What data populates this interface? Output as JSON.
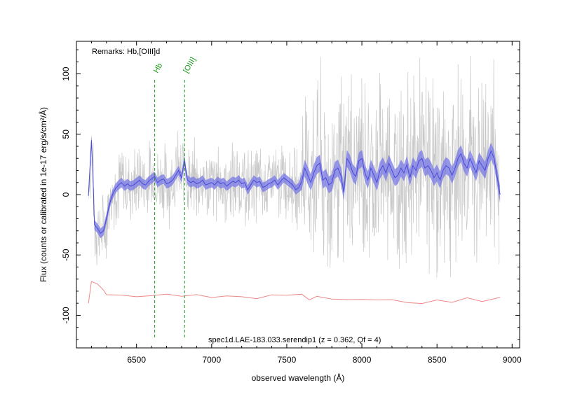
{
  "chart_data": {
    "type": "line",
    "title": "",
    "xlabel": "observed wavelength (Å)",
    "ylabel": "Flux (counts or calibrated in 1e-17 erg/s/cm²/Å)",
    "xlim": [
      6100,
      9050
    ],
    "ylim": [
      -127,
      127
    ],
    "x_ticks": [
      6500,
      7000,
      7500,
      8000,
      8500,
      9000
    ],
    "y_ticks": [
      -100,
      -50,
      0,
      50,
      100
    ],
    "grid": false,
    "remarks": "Remarks: Hb,[OIII]d",
    "object_label": "spec1d.LAE-183.033.serendip1 (z = 0.362, Qf = 4)",
    "line_markers": [
      {
        "name": "Hb",
        "x": 6621
      },
      {
        "name": "[OIII]",
        "x": 6820
      }
    ],
    "colors": {
      "raw": "#c8c8c8",
      "smoothed": "#4a4ad8",
      "smoothed_band": "#7878e6",
      "error": "#ee8888",
      "markers": "#1a9a1a"
    },
    "series": [
      {
        "name": "",
        "role": "smoothed",
        "x": [
          6180,
          6200,
          6210,
          6220,
          6240,
          6260,
          6280,
          6300,
          6320,
          6340,
          6360,
          6380,
          6400,
          6420,
          6440,
          6460,
          6480,
          6500,
          6520,
          6540,
          6560,
          6580,
          6600,
          6620,
          6640,
          6660,
          6680,
          6700,
          6720,
          6740,
          6760,
          6780,
          6800,
          6810,
          6820,
          6830,
          6840,
          6860,
          6880,
          6900,
          6920,
          6940,
          6960,
          6980,
          7000,
          7020,
          7040,
          7060,
          7080,
          7100,
          7120,
          7140,
          7160,
          7180,
          7200,
          7220,
          7240,
          7260,
          7280,
          7300,
          7320,
          7340,
          7360,
          7380,
          7400,
          7420,
          7440,
          7460,
          7480,
          7500,
          7520,
          7540,
          7560,
          7580,
          7600,
          7620,
          7640,
          7660,
          7680,
          7700,
          7720,
          7740,
          7760,
          7780,
          7800,
          7820,
          7840,
          7860,
          7880,
          7900,
          7920,
          7940,
          7960,
          7980,
          8000,
          8020,
          8040,
          8060,
          8080,
          8100,
          8120,
          8140,
          8160,
          8180,
          8200,
          8220,
          8240,
          8260,
          8280,
          8300,
          8320,
          8340,
          8360,
          8380,
          8400,
          8420,
          8440,
          8460,
          8480,
          8500,
          8520,
          8540,
          8560,
          8580,
          8600,
          8620,
          8640,
          8660,
          8680,
          8700,
          8720,
          8740,
          8760,
          8780,
          8800,
          8820,
          8840,
          8860,
          8880,
          8900,
          8920
        ],
        "values": [
          -1,
          45,
          15,
          -25,
          -28,
          -32,
          -30,
          -20,
          -8,
          0,
          5,
          8,
          10,
          7,
          9,
          7,
          8,
          10,
          12,
          9,
          8,
          11,
          13,
          15,
          10,
          12,
          13,
          9,
          10,
          12,
          16,
          20,
          14,
          22,
          28,
          18,
          12,
          10,
          11,
          9,
          10,
          12,
          8,
          9,
          10,
          8,
          11,
          9,
          10,
          7,
          9,
          11,
          10,
          12,
          9,
          10,
          4,
          8,
          12,
          10,
          11,
          6,
          7,
          9,
          10,
          12,
          8,
          11,
          14,
          12,
          10,
          8,
          4,
          6,
          11,
          22,
          16,
          10,
          18,
          24,
          26,
          12,
          14,
          8,
          10,
          20,
          22,
          16,
          2,
          30,
          26,
          18,
          15,
          28,
          30,
          18,
          12,
          22,
          16,
          10,
          20,
          24,
          18,
          26,
          20,
          14,
          16,
          22,
          18,
          25,
          14,
          24,
          20,
          28,
          30,
          22,
          24,
          20,
          14,
          18,
          12,
          20,
          24,
          22,
          16,
          22,
          30,
          34,
          26,
          22,
          30,
          24,
          18,
          28,
          24,
          20,
          30,
          36,
          30,
          15,
          0
        ]
      },
      {
        "name": "",
        "role": "error",
        "x": [
          6180,
          6200,
          6240,
          6280,
          6300,
          6400,
          6500,
          6600,
          6700,
          6800,
          6900,
          7000,
          7100,
          7200,
          7300,
          7400,
          7500,
          7600,
          7650,
          7700,
          7800,
          7900,
          8000,
          8100,
          8200,
          8300,
          8400,
          8500,
          8600,
          8700,
          8800,
          8900,
          8920
        ],
        "values": [
          -90,
          -72,
          -76,
          -80,
          -83,
          -85,
          -85.5,
          -86,
          -86,
          -86.5,
          -86.5,
          -86.5,
          -86.5,
          -86.5,
          -86.5,
          -86.5,
          -86,
          -85,
          -90,
          -88,
          -88,
          -89,
          -89.5,
          -90,
          -90,
          -90.5,
          -90.5,
          -90.5,
          -90,
          -89,
          -89,
          -89,
          -85
        ]
      }
    ]
  }
}
